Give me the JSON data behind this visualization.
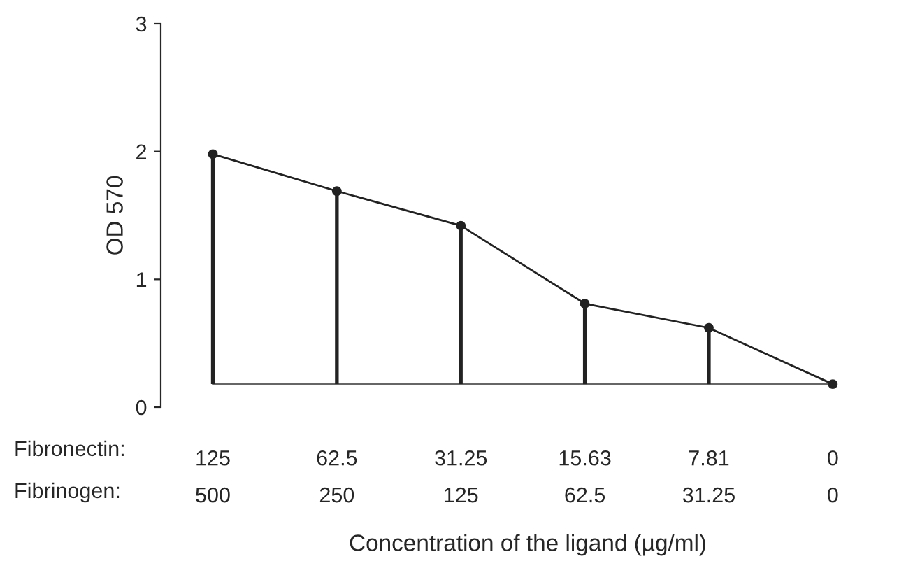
{
  "chart_data": {
    "type": "line",
    "xlabel": "Concentration of the ligand (µg/ml)",
    "ylabel": "OD 570",
    "categories": [
      "125\n500",
      "62.5\n250",
      "31.25\n125",
      "15.63\n62.5",
      "7.81\n31.25",
      "0\n0"
    ],
    "series": [
      {
        "type": "bar",
        "color": "#222222",
        "base": [
          0.18,
          0.18,
          0.18,
          0.18,
          0.18,
          null
        ],
        "values": [
          1.8,
          1.51,
          1.24,
          0.63,
          0.44,
          null
        ]
      },
      {
        "color": "#222222",
        "marker": "circle",
        "values": [
          1.98,
          1.69,
          1.42,
          0.81,
          0.62,
          0.18
        ]
      }
    ],
    "ref_lines": [
      {
        "axis": "y",
        "value": 0.18,
        "color": "#666666"
      }
    ],
    "annotations": [
      "Fibronectin:",
      "Fibrinogen:"
    ],
    "ylim": [
      0,
      3
    ],
    "yticks": [
      0,
      1,
      2,
      3
    ],
    "grid": false,
    "legend": false
  }
}
